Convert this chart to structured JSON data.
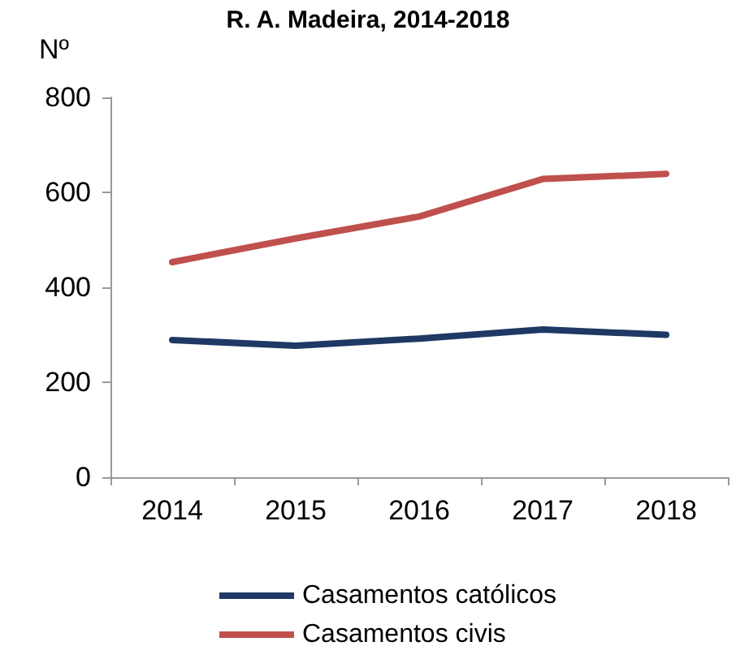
{
  "chart_data": {
    "type": "line",
    "title": "R. A. Madeira, 2014-2018",
    "ylabel": "Nº",
    "categories": [
      "2014",
      "2015",
      "2016",
      "2017",
      "2018"
    ],
    "series": [
      {
        "name": "Casamentos católicos",
        "color": "#1f3864",
        "values": [
          289,
          277,
          292,
          311,
          300
        ]
      },
      {
        "name": "Casamentos civis",
        "color": "#c0504d",
        "values": [
          453,
          503,
          549,
          628,
          639
        ]
      }
    ],
    "ylim": [
      0,
      800
    ],
    "yticks": [
      0,
      200,
      400,
      600,
      800
    ],
    "grid": false,
    "legend": "bottom",
    "marker": "none",
    "line_style": "solid"
  }
}
